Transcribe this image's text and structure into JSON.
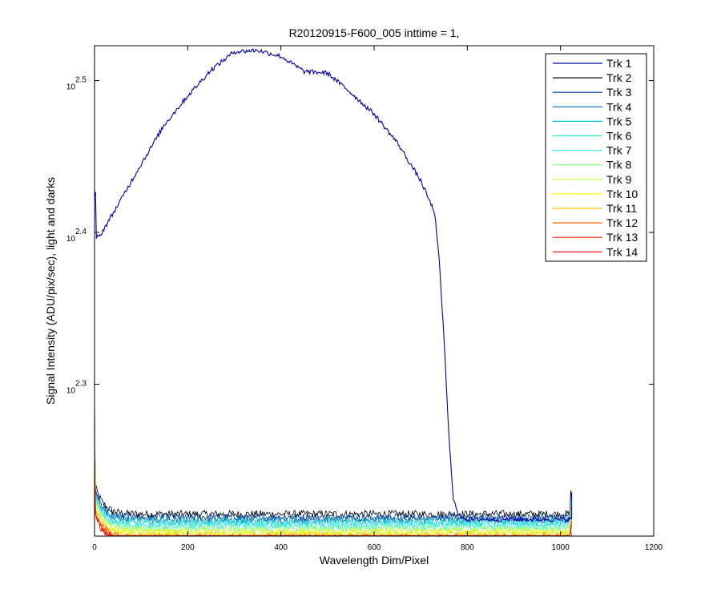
{
  "chart_data": {
    "type": "line",
    "title": "R20120915-F600_005 inttime = 1,",
    "xlabel": "Wavelength Dim/Pixel",
    "ylabel": "Signal Intensity (ADU/pix/sec), light and darks",
    "xlim": [
      0,
      1200
    ],
    "ylim_log10": [
      2.2,
      2.523
    ],
    "y_scale": "log",
    "x_ticks": [
      0,
      200,
      400,
      600,
      800,
      1000,
      1200
    ],
    "y_ticks": [
      {
        "base": "10",
        "exp": "2.3",
        "log10": 2.3
      },
      {
        "base": "10",
        "exp": "2.4",
        "log10": 2.4
      },
      {
        "base": "10",
        "exp": "2.5",
        "log10": 2.5
      }
    ],
    "grid": false,
    "legend_position": "top-right",
    "series": [
      {
        "name": "Trk 1",
        "color": "#0000ad",
        "log10_level": 2.211
      },
      {
        "name": "Trk 2",
        "color": "#000000",
        "log10_level": 2.2145
      },
      {
        "name": "Trk 3",
        "color": "#003896",
        "log10_level": 2.2125
      },
      {
        "name": "Trk 4",
        "color": "#006bb0",
        "log10_level": 2.211
      },
      {
        "name": "Trk 5",
        "color": "#00c0d0",
        "log10_level": 2.2095
      },
      {
        "name": "Trk 6",
        "color": "#20e0e8",
        "log10_level": 2.208
      },
      {
        "name": "Trk 7",
        "color": "#40f0f0",
        "log10_level": 2.2065
      },
      {
        "name": "Trk 8",
        "color": "#80ff80",
        "log10_level": 2.205
      },
      {
        "name": "Trk 9",
        "color": "#c0ff40",
        "log10_level": 2.2035
      },
      {
        "name": "Trk 10",
        "color": "#ffff00",
        "log10_level": 2.202
      },
      {
        "name": "Trk 11",
        "color": "#ffc000",
        "log10_level": 2.2005
      },
      {
        "name": "Trk 12",
        "color": "#ff6000",
        "log10_level": 2.199
      },
      {
        "name": "Trk 13",
        "color": "#ff2000",
        "log10_level": 2.1975
      },
      {
        "name": "Trk 14",
        "color": "#e00000",
        "log10_level": 2.196
      }
    ],
    "trk1_profile": {
      "x": [
        0,
        10,
        50,
        100,
        150,
        200,
        250,
        300,
        350,
        400,
        450,
        500,
        550,
        600,
        650,
        700,
        730,
        740,
        750,
        760,
        770,
        780,
        800,
        1024
      ],
      "log10_y": [
        2.397,
        2.397,
        2.418,
        2.445,
        2.471,
        2.49,
        2.507,
        2.519,
        2.52,
        2.516,
        2.506,
        2.505,
        2.492,
        2.478,
        2.459,
        2.434,
        2.413,
        2.38,
        2.33,
        2.268,
        2.225,
        2.214,
        2.211,
        2.211
      ]
    },
    "x_extent": [
      0,
      1024
    ]
  }
}
